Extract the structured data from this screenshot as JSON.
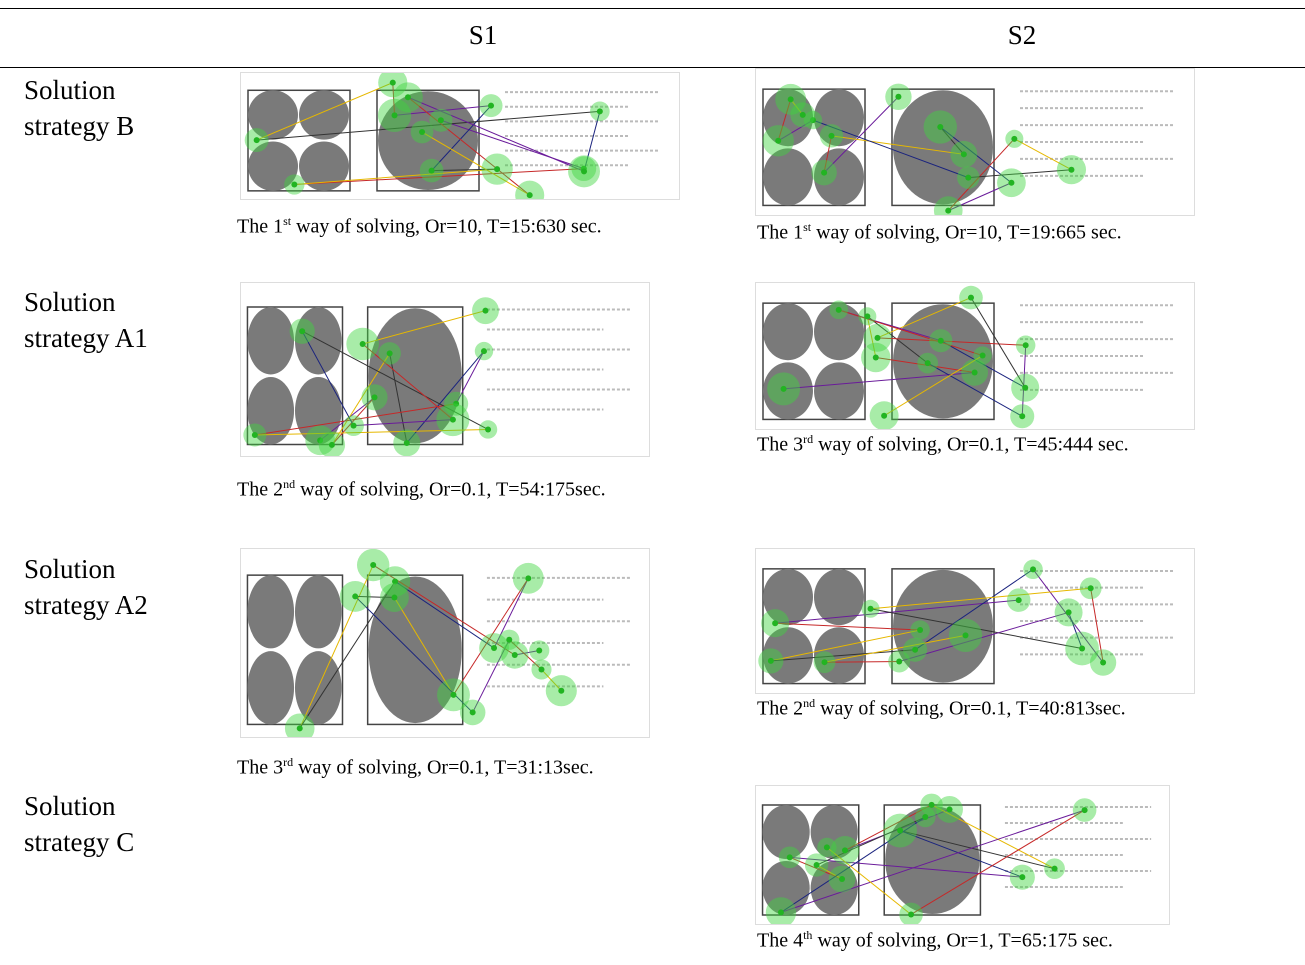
{
  "header": {
    "columns": [
      "S1",
      "S2"
    ]
  },
  "rows": [
    {
      "label": "Solution strategy B",
      "s1": {
        "caption": {
          "lead": "The 1",
          "sup": "st",
          "rest": " way of solving, Or=10, T=15:630 sec."
        }
      },
      "s2": {
        "caption": {
          "lead": "The 1",
          "sup": "st",
          "rest": " way of solving, Or=10, T=19:665 sec."
        }
      }
    },
    {
      "label": "Solution strategy A1",
      "s1": {
        "caption": {
          "lead": "The 2",
          "sup": "nd",
          "rest": " way of solving, Or=0.1, T=54:175sec."
        }
      },
      "s2": {
        "caption": {
          "lead": "The 3",
          "sup": "rd",
          "rest": " way of solving, Or=0.1, T=45:444 sec."
        }
      }
    },
    {
      "label": "Solution strategy A2",
      "s1": {
        "caption": {
          "lead": "The 3",
          "sup": "rd",
          "rest": " way of solving, Or=0.1, T=31:13sec."
        }
      },
      "s2": {
        "caption": {
          "lead": "The 2",
          "sup": "nd",
          "rest": " way of solving, Or=0.1, T=40:813sec."
        }
      }
    },
    {
      "label": "Solution strategy C",
      "s2": {
        "caption": {
          "lead": "The 4",
          "sup": "th",
          "rest": " way of solving, Or=1, T=65:175 sec."
        }
      }
    }
  ]
}
